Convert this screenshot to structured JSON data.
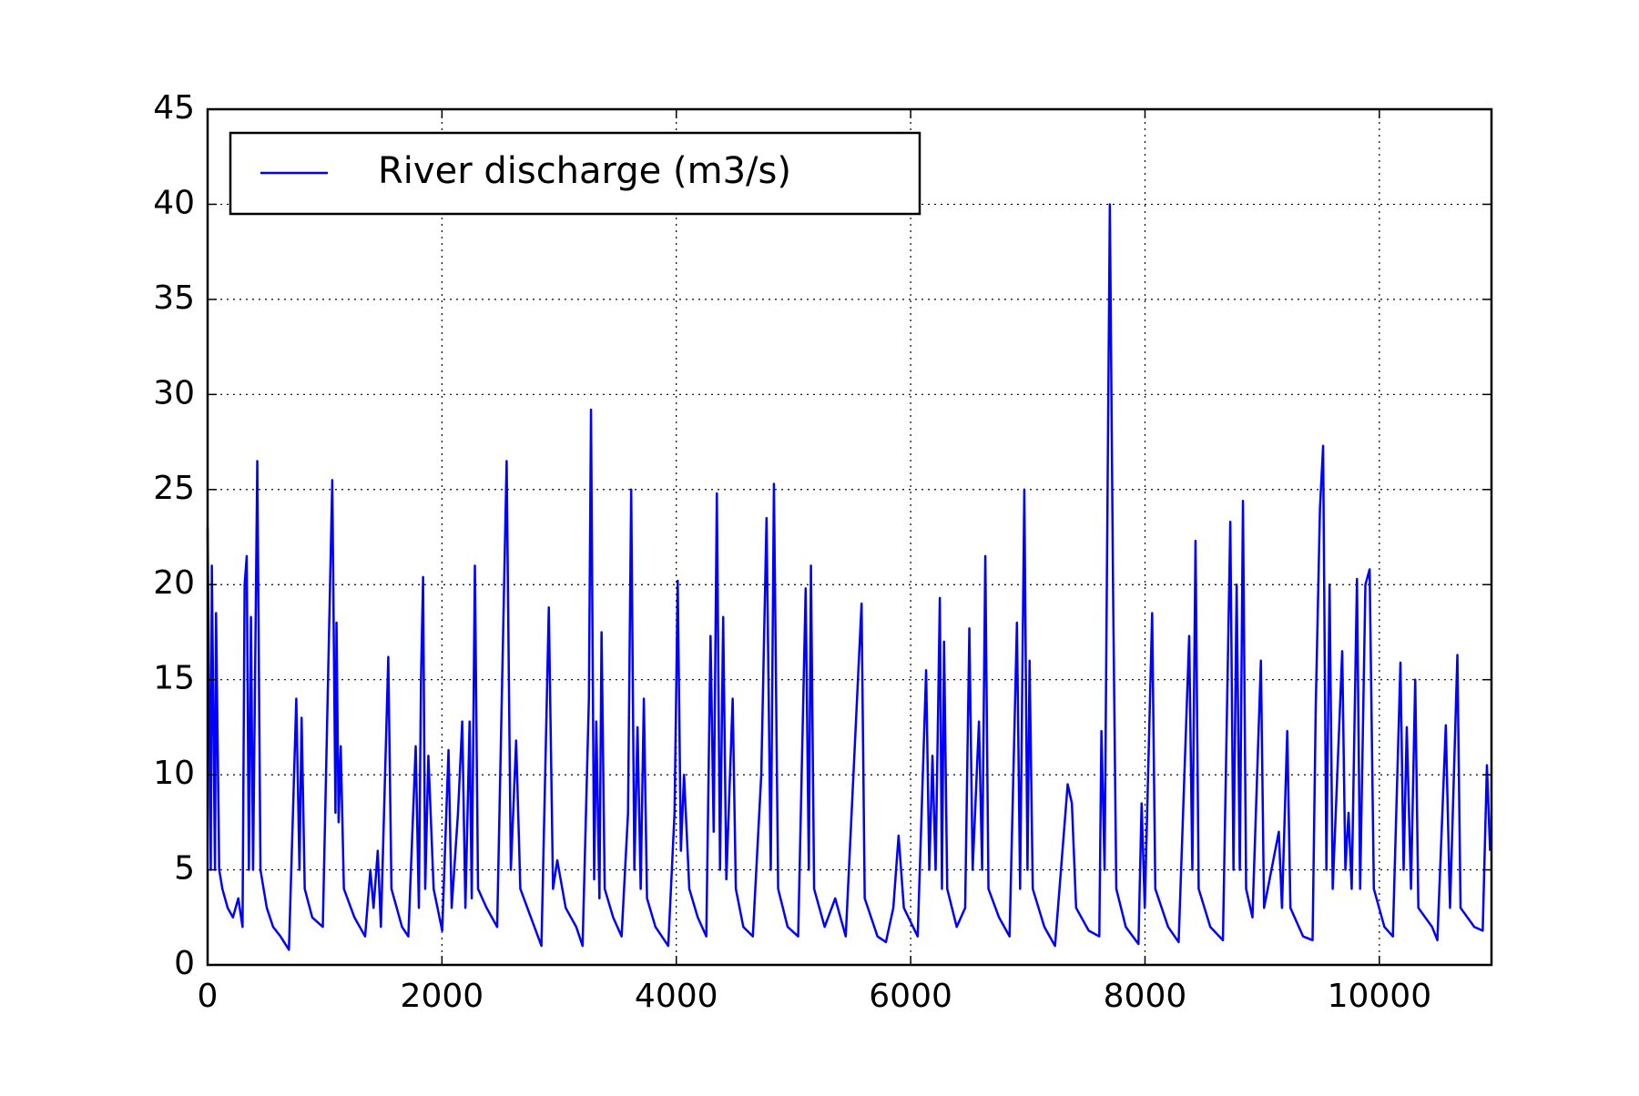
{
  "chart_data": {
    "type": "line",
    "x": [
      0,
      27,
      36,
      63,
      72,
      99,
      126,
      171,
      216,
      262,
      298,
      316,
      334,
      352,
      370,
      388,
      424,
      451,
      478,
      505,
      559,
      622,
      694,
      757,
      784,
      802,
      829,
      893,
      983,
      1064,
      1091,
      1100,
      1118,
      1136,
      1163,
      1253,
      1344,
      1389,
      1416,
      1452,
      1479,
      1542,
      1569,
      1659,
      1713,
      1776,
      1803,
      1821,
      1839,
      1857,
      1884,
      1929,
      2002,
      2056,
      2083,
      2137,
      2173,
      2200,
      2236,
      2254,
      2281,
      2308,
      2381,
      2471,
      2552,
      2588,
      2633,
      2669,
      2759,
      2849,
      2912,
      2948,
      2984,
      3056,
      3146,
      3200,
      3254,
      3272,
      3299,
      3317,
      3344,
      3362,
      3389,
      3461,
      3533,
      3588,
      3615,
      3642,
      3669,
      3696,
      3723,
      3750,
      3822,
      3931,
      3985,
      4012,
      4039,
      4066,
      4111,
      4183,
      4256,
      4292,
      4319,
      4346,
      4373,
      4400,
      4427,
      4481,
      4508,
      4572,
      4653,
      4725,
      4770,
      4806,
      4833,
      4869,
      4950,
      5040,
      5104,
      5131,
      5149,
      5176,
      5266,
      5356,
      5446,
      5581,
      5608,
      5717,
      5789,
      5852,
      5897,
      5942,
      6060,
      6132,
      6159,
      6186,
      6213,
      6249,
      6267,
      6285,
      6312,
      6393,
      6465,
      6501,
      6529,
      6583,
      6610,
      6637,
      6664,
      6754,
      6844,
      6907,
      6934,
      6970,
      6997,
      7015,
      7042,
      7141,
      7232,
      7340,
      7376,
      7412,
      7520,
      7610,
      7628,
      7655,
      7700,
      7727,
      7755,
      7836,
      7944,
      7971,
      7998,
      8061,
      8088,
      8197,
      8287,
      8377,
      8404,
      8431,
      8458,
      8557,
      8665,
      8728,
      8755,
      8782,
      8809,
      8836,
      8863,
      8917,
      8989,
      9016,
      9142,
      9169,
      9214,
      9241,
      9349,
      9430,
      9457,
      9493,
      9520,
      9548,
      9575,
      9602,
      9683,
      9710,
      9737,
      9764,
      9809,
      9836,
      9881,
      9917,
      9953,
      10043,
      10115,
      10180,
      10207,
      10234,
      10270,
      10306,
      10333,
      10450,
      10495,
      10567,
      10603,
      10666,
      10693,
      10810,
      10882,
      10918,
      10945
    ],
    "series": [
      {
        "name": "River discharge (m3/s)",
        "color": "#0000ff",
        "values": [
          23,
          5,
          21,
          5,
          18.5,
          5,
          4,
          3,
          2.5,
          3.5,
          2,
          20,
          21.5,
          5,
          18.3,
          5,
          26.5,
          5,
          4,
          3,
          2,
          1.5,
          0.8,
          14,
          5,
          13,
          4,
          2.5,
          2,
          25.5,
          8,
          18,
          7.5,
          11.5,
          4,
          2.5,
          1.5,
          5,
          3,
          6,
          2,
          16.2,
          4,
          2,
          1.5,
          11.5,
          3,
          15,
          20.4,
          4,
          11,
          4,
          1.8,
          11.3,
          3,
          8,
          12.8,
          3,
          12.8,
          3.5,
          21,
          4,
          3,
          2,
          26.5,
          5,
          11.8,
          4,
          2.5,
          1,
          18.8,
          4,
          5.5,
          3,
          2,
          1,
          14,
          29.2,
          4.5,
          12.8,
          3.5,
          17.5,
          4,
          2.5,
          1.5,
          8,
          25,
          5,
          12.5,
          4,
          14,
          3.5,
          2,
          1,
          8,
          20.2,
          6,
          10,
          4,
          2.5,
          1.5,
          17.3,
          7,
          24.8,
          5,
          18.3,
          4.5,
          14,
          4,
          2,
          1.5,
          10,
          23.5,
          5,
          25.3,
          4,
          2,
          1.5,
          19.8,
          5,
          21,
          4,
          2,
          3.5,
          1.5,
          19,
          3.5,
          1.5,
          1.2,
          3,
          6.8,
          3,
          1.5,
          15.5,
          5,
          11,
          5,
          19.3,
          4,
          17,
          4,
          2,
          3,
          17.7,
          5,
          12.8,
          5,
          21.5,
          4,
          2.5,
          1.5,
          18,
          4,
          25,
          5,
          16,
          4,
          2,
          1,
          9.5,
          8.5,
          3,
          1.8,
          1.5,
          12.3,
          5,
          40,
          20,
          4,
          2,
          1.1,
          8.5,
          3,
          18.5,
          4,
          2,
          1.2,
          17.3,
          5,
          22.3,
          4,
          2,
          1.3,
          23.3,
          5,
          20,
          5,
          24.4,
          4,
          2.5,
          16,
          3,
          7,
          3,
          12.3,
          3,
          1.5,
          1.3,
          13.5,
          24,
          27.3,
          5,
          20,
          4,
          16.5,
          5,
          8,
          4,
          20.3,
          4,
          20,
          20.8,
          4,
          2,
          1.5,
          15.9,
          5,
          12.5,
          4,
          15,
          3,
          2,
          1.3,
          12.6,
          3,
          16.3,
          3,
          2,
          1.8,
          10.5,
          6
        ]
      }
    ],
    "xlim": [
      0,
      10957
    ],
    "ylim": [
      0,
      45
    ],
    "xticks": [
      0,
      2000,
      4000,
      6000,
      8000,
      10000
    ],
    "yticks": [
      0,
      5,
      10,
      15,
      20,
      25,
      30,
      35,
      40,
      45
    ],
    "grid": true,
    "legend": "upper-left"
  }
}
